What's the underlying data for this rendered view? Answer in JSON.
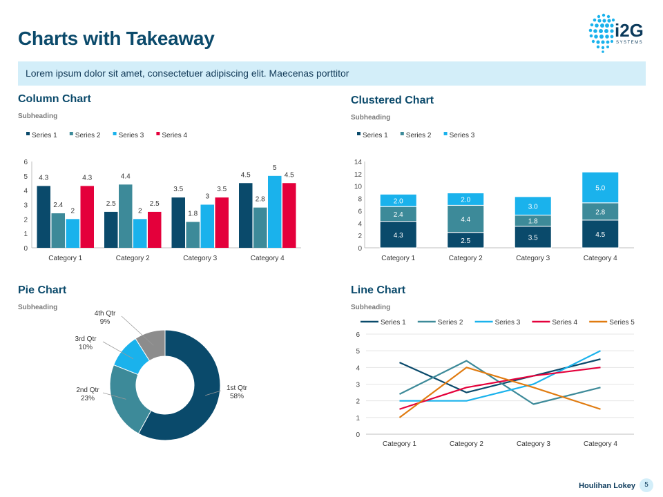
{
  "page": {
    "title": "Charts with Takeaway",
    "takeaway": "Lorem ipsum dolor sit amet, consectetuer adipiscing elit. Maecenas porttitor",
    "logo_text": "i2G",
    "logo_sub": "SYSTEMS",
    "footer_brand": "Houlihan Lokey",
    "page_number": "5"
  },
  "colors": {
    "title": "#0b4a6b",
    "series1": "#0a4a6b",
    "series2": "#3d8a99",
    "series3": "#1ab2ec",
    "series4": "#e4003b",
    "series5": "#e07b10",
    "pie_q1": "#0a4a6b",
    "pie_q2": "#3d8a99",
    "pie_q3": "#1ab2ec",
    "pie_q4": "#8c8c8c"
  },
  "panels": {
    "column": {
      "title": "Column Chart",
      "subheading": "Subheading"
    },
    "clustered": {
      "title": "Clustered Chart",
      "subheading": "Subheading"
    },
    "pie": {
      "title": "Pie Chart",
      "subheading": "Subheading"
    },
    "line": {
      "title": "Line Chart",
      "subheading": "Subheading"
    }
  },
  "chart_data": [
    {
      "id": "column",
      "type": "bar",
      "title": "Column Chart",
      "subtitle": "Subheading",
      "categories": [
        "Category 1",
        "Category 2",
        "Category 3",
        "Category 4"
      ],
      "series": [
        {
          "name": "Series 1",
          "values": [
            4.3,
            2.5,
            3.5,
            4.5
          ]
        },
        {
          "name": "Series 2",
          "values": [
            2.4,
            4.4,
            1.8,
            2.8
          ]
        },
        {
          "name": "Series 3",
          "values": [
            2,
            2,
            3,
            5
          ]
        },
        {
          "name": "Series 4",
          "values": [
            4.3,
            2.5,
            3.5,
            4.5
          ]
        }
      ],
      "ylim": [
        0,
        6
      ],
      "yticks": [
        0,
        1,
        2,
        3,
        4,
        5,
        6
      ],
      "legend": "top-left",
      "grid": false
    },
    {
      "id": "clustered",
      "type": "bar",
      "stacked": true,
      "title": "Clustered Chart",
      "subtitle": "Subheading",
      "categories": [
        "Category 1",
        "Category 2",
        "Category 3",
        "Category 4"
      ],
      "series": [
        {
          "name": "Series 1",
          "values": [
            4.3,
            2.5,
            3.5,
            4.5
          ],
          "labels": [
            "4.3",
            "2.5",
            "3.5",
            "4.5"
          ]
        },
        {
          "name": "Series 2",
          "values": [
            2.4,
            4.4,
            1.8,
            2.8
          ],
          "labels": [
            "2.4",
            "4.4",
            "1.8",
            "2.8"
          ]
        },
        {
          "name": "Series 3",
          "values": [
            2.0,
            2.0,
            3.0,
            5.0
          ],
          "labels": [
            "2.0",
            "2.0",
            "3.0",
            "5.0"
          ]
        }
      ],
      "ylim": [
        0,
        14
      ],
      "yticks": [
        0,
        2,
        4,
        6,
        8,
        10,
        12,
        14
      ],
      "legend": "top-left",
      "grid": false
    },
    {
      "id": "pie",
      "type": "pie",
      "donut": true,
      "title": "Pie Chart",
      "subtitle": "Subheading",
      "slices": [
        {
          "label": "1st Qtr",
          "value": 58,
          "pct": "58%"
        },
        {
          "label": "2nd Qtr",
          "value": 23,
          "pct": "23%"
        },
        {
          "label": "3rd Qtr",
          "value": 10,
          "pct": "10%"
        },
        {
          "label": "4th Qtr",
          "value": 9,
          "pct": "9%"
        }
      ]
    },
    {
      "id": "line",
      "type": "line",
      "title": "Line Chart",
      "subtitle": "Subheading",
      "categories": [
        "Category 1",
        "Category 2",
        "Category 3",
        "Category 4"
      ],
      "series": [
        {
          "name": "Series 1",
          "values": [
            4.3,
            2.5,
            3.5,
            4.5
          ]
        },
        {
          "name": "Series 2",
          "values": [
            2.4,
            4.4,
            1.8,
            2.8
          ]
        },
        {
          "name": "Series 3",
          "values": [
            2,
            2,
            3,
            5
          ]
        },
        {
          "name": "Series 4",
          "values": [
            1.5,
            2.8,
            3.5,
            4
          ]
        },
        {
          "name": "Series 5",
          "values": [
            1,
            4,
            2.8,
            1.5
          ]
        }
      ],
      "ylim": [
        0,
        6
      ],
      "yticks": [
        0,
        1,
        2,
        3,
        4,
        5,
        6
      ],
      "legend": "top-left",
      "grid": true
    }
  ]
}
